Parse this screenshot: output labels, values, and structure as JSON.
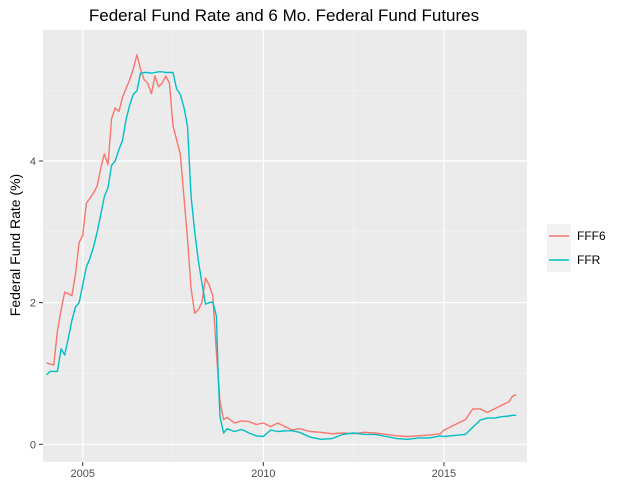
{
  "chart_data": {
    "type": "line",
    "title": "Federal Fund Rate and 6 Mo. Federal Fund Futures",
    "xlabel": "",
    "ylabel": "Federal Fund Rate (%)",
    "xlim": [
      2003.9,
      2017.3
    ],
    "ylim": [
      -0.25,
      5.85
    ],
    "x_ticks": [
      2005,
      2010,
      2015
    ],
    "x_tick_labels": [
      "2005",
      "2010",
      "2015"
    ],
    "y_ticks": [
      0,
      2,
      4
    ],
    "y_tick_labels": [
      "0",
      "2",
      "4"
    ],
    "grid": true,
    "legend_position": "right",
    "series": [
      {
        "name": "FFF6",
        "color": "#F8766D",
        "points": [
          [
            2004.0,
            1.15
          ],
          [
            2004.2,
            1.12
          ],
          [
            2004.3,
            1.6
          ],
          [
            2004.4,
            1.9
          ],
          [
            2004.5,
            2.15
          ],
          [
            2004.7,
            2.1
          ],
          [
            2004.8,
            2.4
          ],
          [
            2004.9,
            2.85
          ],
          [
            2005.0,
            2.95
          ],
          [
            2005.1,
            3.4
          ],
          [
            2005.3,
            3.55
          ],
          [
            2005.4,
            3.65
          ],
          [
            2005.5,
            3.9
          ],
          [
            2005.6,
            4.1
          ],
          [
            2005.7,
            3.95
          ],
          [
            2005.8,
            4.6
          ],
          [
            2005.9,
            4.75
          ],
          [
            2006.0,
            4.7
          ],
          [
            2006.1,
            4.9
          ],
          [
            2006.3,
            5.15
          ],
          [
            2006.4,
            5.3
          ],
          [
            2006.5,
            5.5
          ],
          [
            2006.6,
            5.3
          ],
          [
            2006.7,
            5.15
          ],
          [
            2006.8,
            5.1
          ],
          [
            2006.9,
            4.95
          ],
          [
            2007.0,
            5.2
          ],
          [
            2007.1,
            5.05
          ],
          [
            2007.2,
            5.1
          ],
          [
            2007.3,
            5.2
          ],
          [
            2007.4,
            5.1
          ],
          [
            2007.5,
            4.5
          ],
          [
            2007.6,
            4.3
          ],
          [
            2007.7,
            4.1
          ],
          [
            2007.8,
            3.5
          ],
          [
            2007.9,
            2.9
          ],
          [
            2008.0,
            2.2
          ],
          [
            2008.1,
            1.85
          ],
          [
            2008.2,
            1.9
          ],
          [
            2008.3,
            2.0
          ],
          [
            2008.4,
            2.35
          ],
          [
            2008.5,
            2.25
          ],
          [
            2008.6,
            2.1
          ],
          [
            2008.7,
            1.3
          ],
          [
            2008.8,
            0.6
          ],
          [
            2008.9,
            0.35
          ],
          [
            2009.0,
            0.38
          ],
          [
            2009.2,
            0.3
          ],
          [
            2009.4,
            0.33
          ],
          [
            2009.6,
            0.32
          ],
          [
            2009.8,
            0.28
          ],
          [
            2010.0,
            0.3
          ],
          [
            2010.2,
            0.25
          ],
          [
            2010.4,
            0.3
          ],
          [
            2010.6,
            0.25
          ],
          [
            2010.8,
            0.2
          ],
          [
            2011.0,
            0.22
          ],
          [
            2011.3,
            0.18
          ],
          [
            2011.6,
            0.17
          ],
          [
            2011.9,
            0.15
          ],
          [
            2012.2,
            0.16
          ],
          [
            2012.5,
            0.15
          ],
          [
            2012.8,
            0.17
          ],
          [
            2013.1,
            0.16
          ],
          [
            2013.4,
            0.14
          ],
          [
            2013.7,
            0.12
          ],
          [
            2014.0,
            0.11
          ],
          [
            2014.3,
            0.12
          ],
          [
            2014.6,
            0.13
          ],
          [
            2014.9,
            0.15
          ],
          [
            2015.0,
            0.2
          ],
          [
            2015.2,
            0.25
          ],
          [
            2015.4,
            0.3
          ],
          [
            2015.6,
            0.35
          ],
          [
            2015.8,
            0.5
          ],
          [
            2016.0,
            0.5
          ],
          [
            2016.2,
            0.45
          ],
          [
            2016.4,
            0.5
          ],
          [
            2016.6,
            0.55
          ],
          [
            2016.8,
            0.6
          ],
          [
            2016.9,
            0.68
          ],
          [
            2017.0,
            0.7
          ]
        ]
      },
      {
        "name": "FFR",
        "color": "#00BFC4",
        "points": [
          [
            2004.0,
            0.98
          ],
          [
            2004.1,
            1.03
          ],
          [
            2004.3,
            1.03
          ],
          [
            2004.4,
            1.35
          ],
          [
            2004.5,
            1.26
          ],
          [
            2004.6,
            1.5
          ],
          [
            2004.7,
            1.75
          ],
          [
            2004.8,
            1.94
          ],
          [
            2004.9,
            2.0
          ],
          [
            2005.0,
            2.25
          ],
          [
            2005.1,
            2.5
          ],
          [
            2005.2,
            2.63
          ],
          [
            2005.3,
            2.79
          ],
          [
            2005.4,
            3.0
          ],
          [
            2005.5,
            3.25
          ],
          [
            2005.6,
            3.5
          ],
          [
            2005.7,
            3.62
          ],
          [
            2005.8,
            3.94
          ],
          [
            2005.9,
            4.0
          ],
          [
            2006.0,
            4.16
          ],
          [
            2006.1,
            4.29
          ],
          [
            2006.2,
            4.59
          ],
          [
            2006.3,
            4.79
          ],
          [
            2006.4,
            4.94
          ],
          [
            2006.5,
            4.99
          ],
          [
            2006.6,
            5.24
          ],
          [
            2006.7,
            5.25
          ],
          [
            2006.8,
            5.25
          ],
          [
            2006.9,
            5.24
          ],
          [
            2007.0,
            5.25
          ],
          [
            2007.1,
            5.26
          ],
          [
            2007.2,
            5.26
          ],
          [
            2007.3,
            5.25
          ],
          [
            2007.4,
            5.25
          ],
          [
            2007.5,
            5.25
          ],
          [
            2007.6,
            5.02
          ],
          [
            2007.7,
            4.94
          ],
          [
            2007.8,
            4.76
          ],
          [
            2007.9,
            4.49
          ],
          [
            2008.0,
            3.5
          ],
          [
            2008.1,
            3.0
          ],
          [
            2008.2,
            2.6
          ],
          [
            2008.3,
            2.28
          ],
          [
            2008.4,
            1.98
          ],
          [
            2008.5,
            2.0
          ],
          [
            2008.6,
            2.01
          ],
          [
            2008.7,
            1.81
          ],
          [
            2008.75,
            0.97
          ],
          [
            2008.8,
            0.39
          ],
          [
            2008.9,
            0.16
          ],
          [
            2009.0,
            0.22
          ],
          [
            2009.2,
            0.18
          ],
          [
            2009.4,
            0.21
          ],
          [
            2009.6,
            0.16
          ],
          [
            2009.8,
            0.12
          ],
          [
            2010.0,
            0.11
          ],
          [
            2010.2,
            0.2
          ],
          [
            2010.4,
            0.18
          ],
          [
            2010.6,
            0.19
          ],
          [
            2010.8,
            0.19
          ],
          [
            2011.0,
            0.17
          ],
          [
            2011.3,
            0.1
          ],
          [
            2011.6,
            0.07
          ],
          [
            2011.9,
            0.08
          ],
          [
            2012.2,
            0.14
          ],
          [
            2012.5,
            0.16
          ],
          [
            2012.8,
            0.14
          ],
          [
            2013.1,
            0.14
          ],
          [
            2013.4,
            0.11
          ],
          [
            2013.7,
            0.08
          ],
          [
            2014.0,
            0.07
          ],
          [
            2014.3,
            0.09
          ],
          [
            2014.6,
            0.09
          ],
          [
            2014.9,
            0.12
          ],
          [
            2015.0,
            0.11
          ],
          [
            2015.2,
            0.12
          ],
          [
            2015.4,
            0.13
          ],
          [
            2015.6,
            0.14
          ],
          [
            2015.8,
            0.24
          ],
          [
            2016.0,
            0.34
          ],
          [
            2016.2,
            0.37
          ],
          [
            2016.4,
            0.37
          ],
          [
            2016.6,
            0.39
          ],
          [
            2016.8,
            0.4
          ],
          [
            2016.9,
            0.41
          ],
          [
            2017.0,
            0.41
          ]
        ]
      }
    ]
  }
}
